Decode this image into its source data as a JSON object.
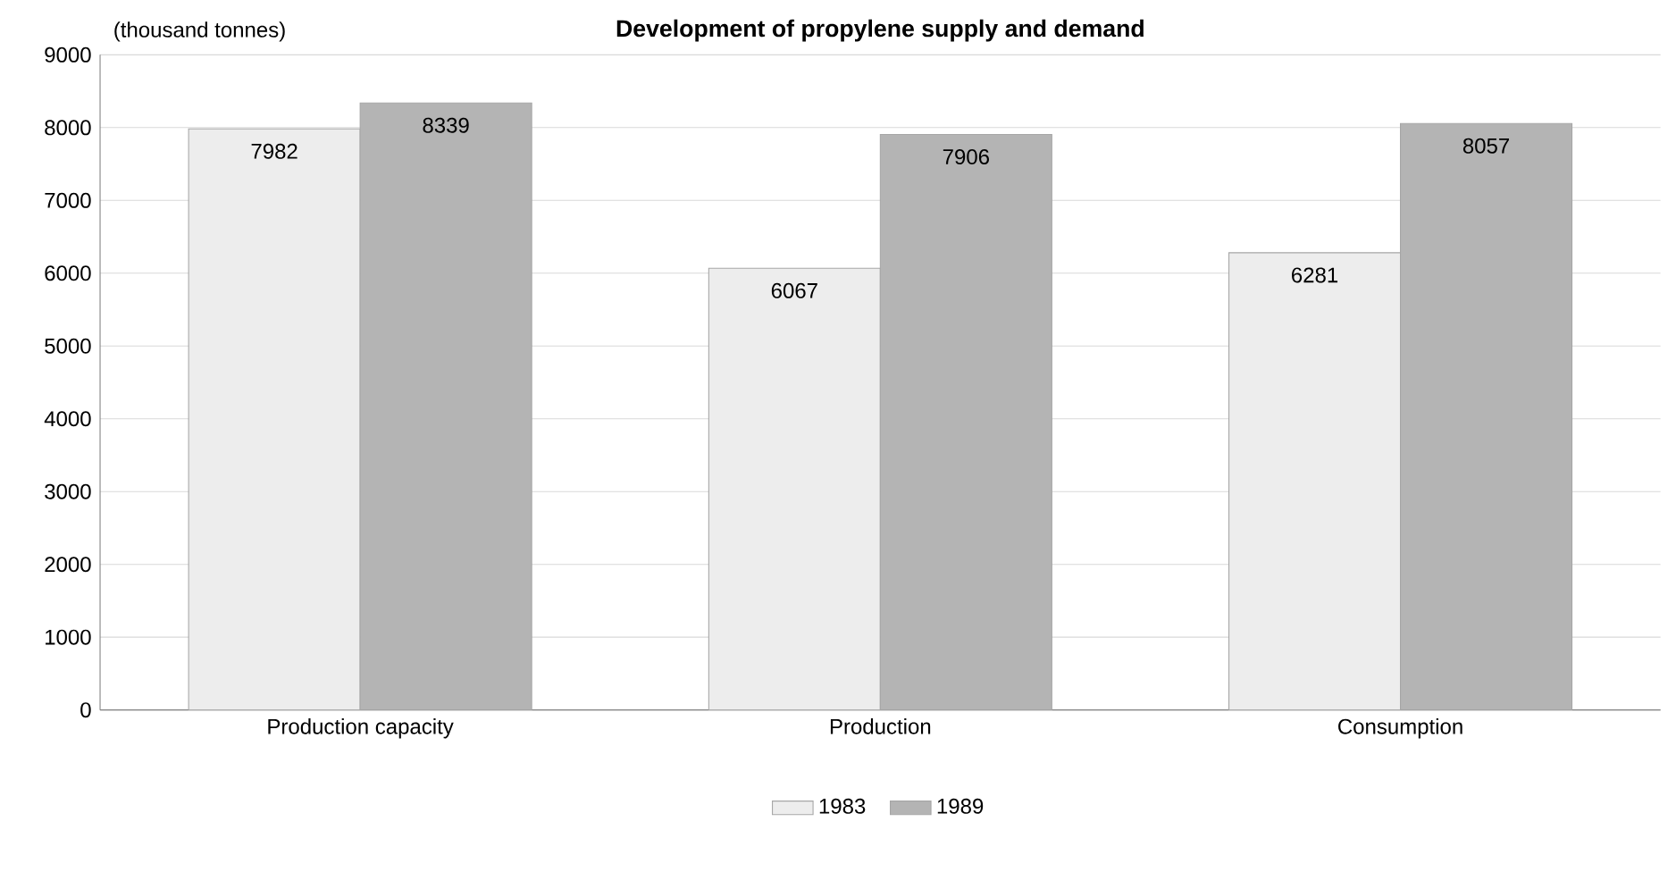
{
  "chart_data": {
    "type": "bar",
    "title": "Development of propylene supply and demand",
    "ylabel": "(thousand tonnes)",
    "categories": [
      "Production capacity",
      "Production",
      "Consumption"
    ],
    "series": [
      {
        "name": "1983",
        "color": "#ededed",
        "values": [
          7982,
          6067,
          6281
        ]
      },
      {
        "name": "1989",
        "color": "#b4b4b4",
        "values": [
          8339,
          7906,
          8057
        ]
      }
    ],
    "ylim": [
      0,
      9000
    ],
    "yticks": [
      0,
      1000,
      2000,
      3000,
      4000,
      5000,
      6000,
      7000,
      8000,
      9000
    ],
    "grid": "y",
    "legend": "bottom",
    "data_labels": true
  }
}
